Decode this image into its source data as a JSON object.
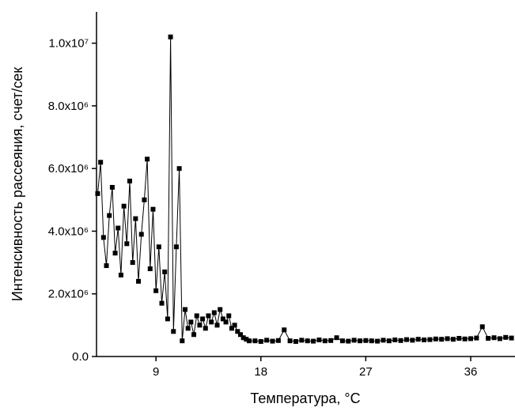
{
  "chart_data": {
    "type": "line",
    "x_label": "Температура, °C",
    "y_label": "Интенсивность рассеяния, счет/сек",
    "xlim": [
      3.9,
      39.8
    ],
    "xticks": [
      9,
      18,
      27,
      36
    ],
    "ylim": [
      0,
      11000000
    ],
    "yticks": [
      {
        "value": 0,
        "label": "0.0"
      },
      {
        "value": 2000000,
        "label": "2.0x10⁶"
      },
      {
        "value": 4000000,
        "label": "4.0x10⁶"
      },
      {
        "value": 6000000,
        "label": "6.0x10⁶"
      },
      {
        "value": 8000000,
        "label": "8.0x10⁶"
      },
      {
        "value": 10000000,
        "label": "1.0x10⁷"
      }
    ],
    "color": "#000000",
    "x": [
      4.0,
      4.25,
      4.5,
      4.75,
      5.0,
      5.25,
      5.5,
      5.75,
      6.0,
      6.25,
      6.5,
      6.75,
      7.0,
      7.25,
      7.5,
      7.75,
      8.0,
      8.25,
      8.5,
      8.75,
      9.0,
      9.25,
      9.5,
      9.75,
      10.0,
      10.25,
      10.5,
      10.75,
      11.0,
      11.25,
      11.5,
      11.75,
      12.0,
      12.25,
      12.5,
      12.75,
      13.0,
      13.25,
      13.5,
      13.75,
      14.0,
      14.25,
      14.5,
      14.75,
      15.0,
      15.25,
      15.5,
      15.75,
      16.0,
      16.25,
      16.5,
      16.75,
      17.0,
      17.5,
      18,
      18.5,
      19,
      19.5,
      20,
      20.5,
      21,
      21.5,
      22,
      22.5,
      23,
      23.5,
      24,
      24.5,
      25,
      25.5,
      26,
      26.5,
      27,
      27.5,
      28,
      28.5,
      29,
      29.5,
      30,
      30.5,
      31,
      31.5,
      32,
      32.5,
      33,
      33.5,
      34,
      34.5,
      35,
      35.5,
      36,
      36.5,
      37,
      37.5,
      38,
      38.5,
      39,
      39.5
    ],
    "values": [
      5200000,
      6200000,
      3800000,
      2900000,
      4500000,
      5400000,
      3300000,
      4100000,
      2600000,
      4800000,
      3600000,
      5600000,
      3000000,
      4400000,
      2400000,
      3900000,
      5000000,
      6300000,
      2800000,
      4700000,
      2100000,
      3500000,
      1700000,
      2700000,
      1200000,
      10200000,
      800000,
      3500000,
      6000000,
      500000,
      1500000,
      900000,
      1100000,
      700000,
      1300000,
      1000000,
      1200000,
      900000,
      1300000,
      1100000,
      1400000,
      1000000,
      1500000,
      1200000,
      1100000,
      1300000,
      900000,
      1000000,
      800000,
      700000,
      600000,
      550000,
      500000,
      500000,
      480000,
      520000,
      490000,
      510000,
      850000,
      500000,
      480000,
      520000,
      500000,
      490000,
      530000,
      500000,
      510000,
      600000,
      500000,
      490000,
      520000,
      500000,
      510000,
      500000,
      490000,
      520000,
      500000,
      530000,
      510000,
      540000,
      520000,
      550000,
      530000,
      540000,
      560000,
      550000,
      570000,
      550000,
      580000,
      560000,
      570000,
      590000,
      950000,
      580000,
      600000,
      570000,
      610000,
      590000
    ]
  }
}
